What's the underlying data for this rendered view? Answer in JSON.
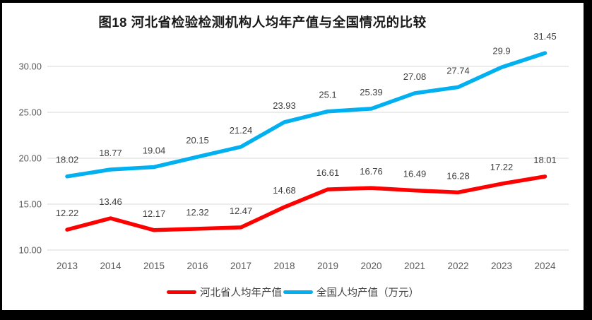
{
  "title": "图18 河北省检验检测机构人均年产值与全国情况的比较",
  "frame": {
    "border_color": "#000000",
    "background": "#ffffff"
  },
  "chart_data": {
    "type": "line",
    "title": "图18 河北省检验检测机构人均年产值与全国情况的比较",
    "xlabel": "",
    "ylabel": "",
    "categories": [
      2013,
      2014,
      2015,
      2016,
      2017,
      2018,
      2019,
      2020,
      2021,
      2022,
      2023,
      2024
    ],
    "series": [
      {
        "name": "河北省人均年产值",
        "color": "#fe0000",
        "values": [
          12.22,
          13.46,
          12.17,
          12.32,
          12.47,
          14.68,
          16.61,
          16.76,
          16.49,
          16.28,
          17.22,
          18.01
        ]
      },
      {
        "name": "全国人均产值（万元）",
        "color": "#00b0f0",
        "values": [
          18.02,
          18.77,
          19.04,
          20.15,
          21.24,
          23.93,
          25.1,
          25.39,
          27.08,
          27.74,
          29.9,
          31.45
        ]
      }
    ],
    "yticks": [
      {
        "value": 10,
        "label": "10.00"
      },
      {
        "value": 15,
        "label": "15.00"
      },
      {
        "value": 20,
        "label": "20.00"
      },
      {
        "value": 25,
        "label": "25.00"
      },
      {
        "value": 30,
        "label": "30.00"
      }
    ],
    "ylim": [
      10,
      32.5
    ],
    "grid": true,
    "data_labels": true,
    "legend_position": "bottom",
    "colors": {
      "gridline": "#d9d9d9",
      "axis_text": "#595959",
      "data_label_text": "#404040",
      "title_text": "#1a1a1a"
    }
  }
}
